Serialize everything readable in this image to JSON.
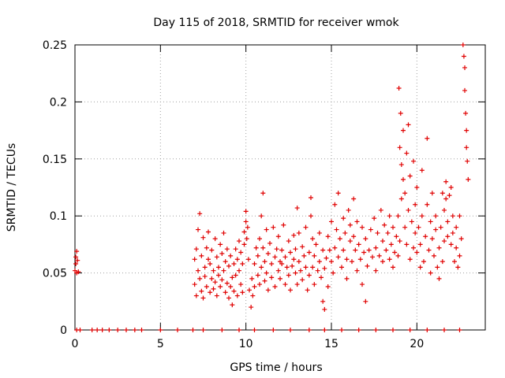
{
  "chart_data": {
    "type": "scatter",
    "title": "Day 115 of 2018, SRMTID for receiver wmok",
    "xlabel": "GPS time / hours",
    "ylabel": "SRMTID / TECUs",
    "xlim": [
      0,
      24
    ],
    "ylim": [
      0,
      0.25
    ],
    "xticks": [
      0,
      5,
      10,
      15,
      20
    ],
    "xtick_labels": [
      "0",
      "5",
      "10",
      "15",
      "20"
    ],
    "yticks": [
      0,
      0.05,
      0.1,
      0.15,
      0.2,
      0.25
    ],
    "ytick_labels": [
      "0",
      "0.05",
      "0.1",
      "0.15",
      "0.2",
      "0.25"
    ],
    "grid": true,
    "marker": "+",
    "marker_color": "#e00000",
    "series": [
      {
        "name": "SRMTID",
        "points": [
          [
            0.0,
            0.052
          ],
          [
            0.05,
            0.058
          ],
          [
            0.05,
            0.064
          ],
          [
            0.1,
            0.05
          ],
          [
            0.1,
            0.069
          ],
          [
            0.15,
            0.061
          ],
          [
            0.2,
            0.051
          ],
          [
            0.1,
            0.0
          ],
          [
            0.3,
            0.0
          ],
          [
            1.0,
            0.0
          ],
          [
            1.3,
            0.0
          ],
          [
            1.6,
            0.0
          ],
          [
            2.0,
            0.0
          ],
          [
            2.5,
            0.0
          ],
          [
            3.0,
            0.0
          ],
          [
            3.5,
            0.0
          ],
          [
            3.9,
            0.0
          ],
          [
            5.0,
            0.0
          ],
          [
            6.0,
            0.0
          ],
          [
            6.9,
            0.0
          ],
          [
            7.5,
            0.0
          ],
          [
            8.6,
            0.0
          ],
          [
            9.6,
            0.0
          ],
          [
            10.5,
            0.0
          ],
          [
            11.6,
            0.0
          ],
          [
            12.6,
            0.0
          ],
          [
            13.7,
            0.0
          ],
          [
            14.6,
            0.0
          ],
          [
            15.6,
            0.0
          ],
          [
            16.6,
            0.0
          ],
          [
            17.6,
            0.0
          ],
          [
            18.6,
            0.0
          ],
          [
            19.6,
            0.0
          ],
          [
            20.6,
            0.0
          ],
          [
            21.6,
            0.0
          ],
          [
            22.5,
            0.0
          ],
          [
            7.0,
            0.04
          ],
          [
            7.0,
            0.062
          ],
          [
            7.1,
            0.03
          ],
          [
            7.1,
            0.071
          ],
          [
            7.2,
            0.052
          ],
          [
            7.2,
            0.088
          ],
          [
            7.3,
            0.102
          ],
          [
            7.3,
            0.045
          ],
          [
            7.4,
            0.034
          ],
          [
            7.4,
            0.065
          ],
          [
            7.5,
            0.081
          ],
          [
            7.5,
            0.028
          ],
          [
            7.6,
            0.055
          ],
          [
            7.6,
            0.047
          ],
          [
            7.7,
            0.038
          ],
          [
            7.7,
            0.072
          ],
          [
            7.8,
            0.062
          ],
          [
            7.8,
            0.086
          ],
          [
            7.9,
            0.033
          ],
          [
            7.9,
            0.058
          ],
          [
            8.0,
            0.045
          ],
          [
            8.0,
            0.07
          ],
          [
            8.1,
            0.036
          ],
          [
            8.1,
            0.052
          ],
          [
            8.2,
            0.08
          ],
          [
            8.2,
            0.042
          ],
          [
            8.3,
            0.064
          ],
          [
            8.3,
            0.03
          ],
          [
            8.4,
            0.055
          ],
          [
            8.4,
            0.048
          ],
          [
            8.5,
            0.075
          ],
          [
            8.5,
            0.038
          ],
          [
            8.6,
            0.067
          ],
          [
            8.6,
            0.044
          ],
          [
            8.7,
            0.085
          ],
          [
            8.7,
            0.052
          ],
          [
            8.8,
            0.033
          ],
          [
            8.8,
            0.06
          ],
          [
            8.9,
            0.041
          ],
          [
            8.9,
            0.071
          ],
          [
            9.0,
            0.028
          ],
          [
            9.0,
            0.056
          ],
          [
            9.1,
            0.065
          ],
          [
            9.1,
            0.038
          ],
          [
            9.2,
            0.046
          ],
          [
            9.2,
            0.022
          ],
          [
            9.3,
            0.058
          ],
          [
            9.3,
            0.034
          ],
          [
            9.4,
            0.071
          ],
          [
            9.4,
            0.048
          ],
          [
            9.5,
            0.03
          ],
          [
            9.5,
            0.062
          ],
          [
            9.6,
            0.052
          ],
          [
            9.6,
            0.078
          ],
          [
            9.7,
            0.04
          ],
          [
            9.7,
            0.068
          ],
          [
            9.8,
            0.058
          ],
          [
            9.8,
            0.033
          ],
          [
            9.9,
            0.075
          ],
          [
            9.9,
            0.086
          ],
          [
            10.0,
            0.095
          ],
          [
            10.0,
            0.104
          ],
          [
            10.05,
            0.08
          ],
          [
            10.1,
            0.09
          ],
          [
            10.15,
            0.062
          ],
          [
            10.2,
            0.035
          ],
          [
            10.3,
            0.02
          ],
          [
            10.35,
            0.045
          ],
          [
            10.4,
            0.03
          ],
          [
            10.5,
            0.058
          ],
          [
            10.5,
            0.038
          ],
          [
            10.6,
            0.072
          ],
          [
            10.7,
            0.048
          ],
          [
            10.7,
            0.065
          ],
          [
            10.8,
            0.08
          ],
          [
            10.8,
            0.04
          ],
          [
            10.9,
            0.055
          ],
          [
            10.9,
            0.1
          ],
          [
            11.0,
            0.12
          ],
          [
            11.0,
            0.072
          ],
          [
            11.1,
            0.06
          ],
          [
            11.1,
            0.043
          ],
          [
            11.2,
            0.088
          ],
          [
            11.2,
            0.05
          ],
          [
            11.3,
            0.067
          ],
          [
            11.3,
            0.035
          ],
          [
            11.4,
            0.076
          ],
          [
            11.5,
            0.058
          ],
          [
            11.5,
            0.046
          ],
          [
            11.6,
            0.09
          ],
          [
            11.7,
            0.064
          ],
          [
            11.7,
            0.038
          ],
          [
            11.8,
            0.071
          ],
          [
            11.9,
            0.052
          ],
          [
            11.9,
            0.082
          ],
          [
            12.0,
            0.06
          ],
          [
            12.0,
            0.045
          ],
          [
            12.1,
            0.07
          ],
          [
            12.1,
            0.058
          ],
          [
            12.2,
            0.092
          ],
          [
            12.3,
            0.064
          ],
          [
            12.3,
            0.04
          ],
          [
            12.4,
            0.055
          ],
          [
            12.5,
            0.078
          ],
          [
            12.5,
            0.048
          ],
          [
            12.6,
            0.068
          ],
          [
            12.6,
            0.035
          ],
          [
            12.7,
            0.056
          ],
          [
            12.8,
            0.083
          ],
          [
            12.8,
            0.062
          ],
          [
            12.9,
            0.05
          ],
          [
            12.9,
            0.071
          ],
          [
            13.0,
            0.107
          ],
          [
            13.0,
            0.04
          ],
          [
            13.1,
            0.06
          ],
          [
            13.1,
            0.085
          ],
          [
            13.2,
            0.052
          ],
          [
            13.3,
            0.073
          ],
          [
            13.3,
            0.044
          ],
          [
            13.4,
            0.065
          ],
          [
            13.5,
            0.09
          ],
          [
            13.5,
            0.055
          ],
          [
            13.6,
            0.035
          ],
          [
            13.7,
            0.068
          ],
          [
            13.7,
            0.048
          ],
          [
            13.8,
            0.116
          ],
          [
            13.8,
            0.1
          ],
          [
            13.9,
            0.08
          ],
          [
            13.9,
            0.055
          ],
          [
            14.0,
            0.065
          ],
          [
            14.0,
            0.04
          ],
          [
            14.1,
            0.075
          ],
          [
            14.2,
            0.052
          ],
          [
            14.3,
            0.085
          ],
          [
            14.3,
            0.06
          ],
          [
            14.4,
            0.046
          ],
          [
            14.5,
            0.07
          ],
          [
            14.5,
            0.025
          ],
          [
            14.6,
            0.018
          ],
          [
            14.6,
            0.054
          ],
          [
            14.7,
            0.063
          ],
          [
            14.8,
            0.082
          ],
          [
            14.8,
            0.038
          ],
          [
            14.9,
            0.07
          ],
          [
            15.0,
            0.095
          ],
          [
            15.0,
            0.06
          ],
          [
            15.1,
            0.05
          ],
          [
            15.2,
            0.072
          ],
          [
            15.2,
            0.11
          ],
          [
            15.3,
            0.088
          ],
          [
            15.4,
            0.064
          ],
          [
            15.4,
            0.12
          ],
          [
            15.5,
            0.08
          ],
          [
            15.6,
            0.055
          ],
          [
            15.7,
            0.098
          ],
          [
            15.7,
            0.07
          ],
          [
            15.8,
            0.085
          ],
          [
            15.9,
            0.062
          ],
          [
            15.9,
            0.045
          ],
          [
            16.0,
            0.105
          ],
          [
            16.1,
            0.078
          ],
          [
            16.1,
            0.092
          ],
          [
            16.2,
            0.06
          ],
          [
            16.3,
            0.115
          ],
          [
            16.3,
            0.082
          ],
          [
            16.4,
            0.07
          ],
          [
            16.5,
            0.095
          ],
          [
            16.5,
            0.052
          ],
          [
            16.6,
            0.075
          ],
          [
            16.7,
            0.062
          ],
          [
            16.8,
            0.09
          ],
          [
            16.8,
            0.04
          ],
          [
            16.9,
            0.068
          ],
          [
            17.0,
            0.08
          ],
          [
            17.0,
            0.025
          ],
          [
            17.1,
            0.056
          ],
          [
            17.2,
            0.07
          ],
          [
            17.3,
            0.088
          ],
          [
            17.4,
            0.064
          ],
          [
            17.5,
            0.098
          ],
          [
            17.6,
            0.072
          ],
          [
            17.6,
            0.052
          ],
          [
            17.7,
            0.085
          ],
          [
            17.8,
            0.065
          ],
          [
            17.9,
            0.105
          ],
          [
            18.0,
            0.078
          ],
          [
            18.0,
            0.06
          ],
          [
            18.1,
            0.092
          ],
          [
            18.2,
            0.07
          ],
          [
            18.3,
            0.085
          ],
          [
            18.4,
            0.062
          ],
          [
            18.4,
            0.1
          ],
          [
            18.5,
            0.075
          ],
          [
            18.6,
            0.09
          ],
          [
            18.6,
            0.055
          ],
          [
            18.7,
            0.068
          ],
          [
            18.8,
            0.082
          ],
          [
            18.9,
            0.1
          ],
          [
            18.9,
            0.065
          ],
          [
            19.0,
            0.078
          ],
          [
            18.95,
            0.212
          ],
          [
            19.0,
            0.16
          ],
          [
            19.05,
            0.19
          ],
          [
            19.1,
            0.145
          ],
          [
            19.1,
            0.115
          ],
          [
            19.2,
            0.175
          ],
          [
            19.2,
            0.132
          ],
          [
            19.3,
            0.12
          ],
          [
            19.3,
            0.09
          ],
          [
            19.4,
            0.155
          ],
          [
            19.4,
            0.075
          ],
          [
            19.5,
            0.18
          ],
          [
            19.5,
            0.105
          ],
          [
            19.6,
            0.135
          ],
          [
            19.6,
            0.062
          ],
          [
            19.7,
            0.095
          ],
          [
            19.8,
            0.148
          ],
          [
            19.8,
            0.072
          ],
          [
            19.9,
            0.11
          ],
          [
            19.9,
            0.085
          ],
          [
            20.0,
            0.068
          ],
          [
            20.0,
            0.125
          ],
          [
            20.1,
            0.09
          ],
          [
            20.2,
            0.055
          ],
          [
            20.2,
            0.075
          ],
          [
            20.3,
            0.14
          ],
          [
            20.3,
            0.1
          ],
          [
            20.4,
            0.06
          ],
          [
            20.5,
            0.082
          ],
          [
            20.6,
            0.168
          ],
          [
            20.6,
            0.11
          ],
          [
            20.7,
            0.07
          ],
          [
            20.8,
            0.095
          ],
          [
            20.8,
            0.05
          ],
          [
            20.9,
            0.12
          ],
          [
            20.9,
            0.08
          ],
          [
            21.0,
            0.065
          ],
          [
            21.1,
            0.088
          ],
          [
            21.1,
            0.1
          ],
          [
            21.2,
            0.055
          ],
          [
            21.3,
            0.072
          ],
          [
            21.3,
            0.045
          ],
          [
            21.4,
            0.09
          ],
          [
            21.5,
            0.12
          ],
          [
            21.5,
            0.06
          ],
          [
            21.6,
            0.105
          ],
          [
            21.6,
            0.078
          ],
          [
            21.7,
            0.13
          ],
          [
            21.7,
            0.115
          ],
          [
            21.8,
            0.095
          ],
          [
            21.8,
            0.082
          ],
          [
            21.9,
            0.118
          ],
          [
            22.0,
            0.125
          ],
          [
            22.0,
            0.075
          ],
          [
            22.1,
            0.1
          ],
          [
            22.1,
            0.085
          ],
          [
            22.2,
            0.06
          ],
          [
            22.3,
            0.072
          ],
          [
            22.3,
            0.09
          ],
          [
            22.4,
            0.055
          ],
          [
            22.5,
            0.065
          ],
          [
            22.5,
            0.1
          ],
          [
            22.6,
            0.08
          ],
          [
            22.7,
            0.25
          ],
          [
            22.75,
            0.24
          ],
          [
            22.8,
            0.23
          ],
          [
            22.8,
            0.21
          ],
          [
            22.85,
            0.19
          ],
          [
            22.9,
            0.175
          ],
          [
            22.9,
            0.16
          ],
          [
            22.95,
            0.148
          ],
          [
            23.0,
            0.132
          ]
        ]
      }
    ]
  }
}
